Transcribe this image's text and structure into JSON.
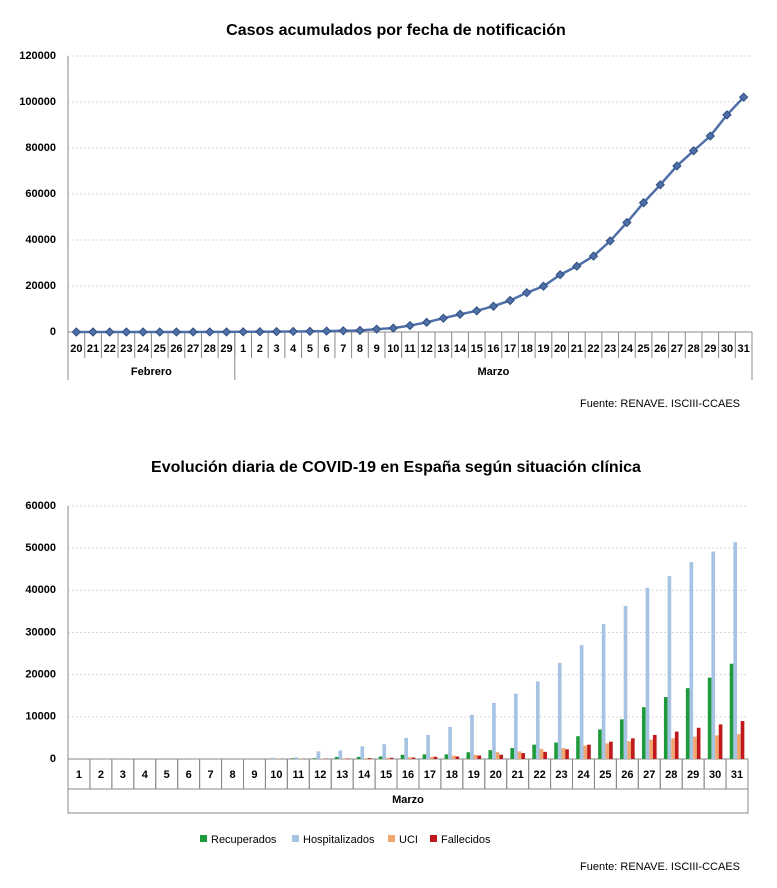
{
  "chart_data": [
    {
      "type": "line",
      "title": "Casos acumulados por fecha de notificación",
      "groups": [
        {
          "name": "Febrero",
          "categories": [
            "20",
            "21",
            "22",
            "23",
            "24",
            "25",
            "26",
            "27",
            "28",
            "29"
          ],
          "values": [
            3,
            3,
            3,
            3,
            3,
            5,
            13,
            16,
            33,
            45
          ]
        },
        {
          "name": "Marzo",
          "categories": [
            "1",
            "2",
            "3",
            "4",
            "5",
            "6",
            "7",
            "8",
            "9",
            "10",
            "11",
            "12",
            "13",
            "14",
            "15",
            "16",
            "17",
            "18",
            "19",
            "20",
            "21",
            "22",
            "23",
            "24",
            "25",
            "26",
            "27",
            "28",
            "29",
            "30",
            "31"
          ],
          "values": [
            84,
            120,
            165,
            228,
            282,
            401,
            525,
            674,
            1231,
            1695,
            2800,
            4200,
            6000,
            7700,
            9200,
            11200,
            13700,
            17100,
            19900,
            24900,
            28600,
            33000,
            39600,
            47600,
            56200,
            64000,
            72200,
            78800,
            85200,
            94400,
            102100
          ]
        }
      ],
      "color": "#4f6fa8",
      "ylim": [
        0,
        120000
      ],
      "yticks": [
        0,
        20000,
        40000,
        60000,
        80000,
        100000,
        120000
      ],
      "grid": true,
      "source": "Fuente: RENAVE. ISCIII-CCAES"
    },
    {
      "type": "bar",
      "title": "Evolución diaria de COVID-19 en España según situación clínica",
      "categories": [
        "1",
        "2",
        "3",
        "4",
        "5",
        "6",
        "7",
        "8",
        "9",
        "10",
        "11",
        "12",
        "13",
        "14",
        "15",
        "16",
        "17",
        "18",
        "19",
        "20",
        "21",
        "22",
        "23",
        "24",
        "25",
        "26",
        "27",
        "28",
        "29",
        "30",
        "31"
      ],
      "xlabel": "Marzo",
      "series": [
        {
          "name": "Recuperados",
          "color": "#1f9a3a",
          "values": [
            0,
            0,
            0,
            0,
            0,
            0,
            0,
            0,
            0,
            30,
            180,
            190,
            500,
            500,
            600,
            1000,
            1100,
            1100,
            1600,
            2100,
            2600,
            3400,
            3900,
            5400,
            7000,
            9400,
            12300,
            14700,
            16800,
            19300,
            22600
          ]
        },
        {
          "name": "Hospitalizados",
          "color": "#a6c3e3",
          "values": [
            0,
            0,
            0,
            0,
            0,
            0,
            0,
            0,
            0,
            300,
            400,
            1800,
            2000,
            3000,
            3500,
            5000,
            5700,
            7600,
            10500,
            13300,
            15500,
            18400,
            22800,
            27000,
            32000,
            36300,
            40600,
            43400,
            46700,
            49200,
            51400
          ]
        },
        {
          "name": "UCI",
          "color": "#f2a770",
          "values": [
            0,
            0,
            0,
            0,
            0,
            0,
            0,
            0,
            0,
            50,
            80,
            100,
            150,
            200,
            300,
            400,
            500,
            800,
            1000,
            1600,
            1800,
            2400,
            2600,
            3200,
            3700,
            4200,
            4600,
            4900,
            5300,
            5600,
            5900
          ]
        },
        {
          "name": "Fallecidos",
          "color": "#c0191b",
          "values": [
            0,
            0,
            0,
            0,
            0,
            0,
            0,
            0,
            0,
            30,
            50,
            80,
            120,
            200,
            290,
            340,
            530,
            600,
            830,
            1000,
            1400,
            1700,
            2300,
            3400,
            4100,
            4900,
            5700,
            6500,
            7400,
            8200,
            9000
          ]
        }
      ],
      "ylim": [
        0,
        60000
      ],
      "yticks": [
        0,
        10000,
        20000,
        30000,
        40000,
        50000,
        60000
      ],
      "grid": true,
      "legend": "bottom",
      "source": "Fuente: RENAVE. ISCIII-CCAES"
    }
  ]
}
